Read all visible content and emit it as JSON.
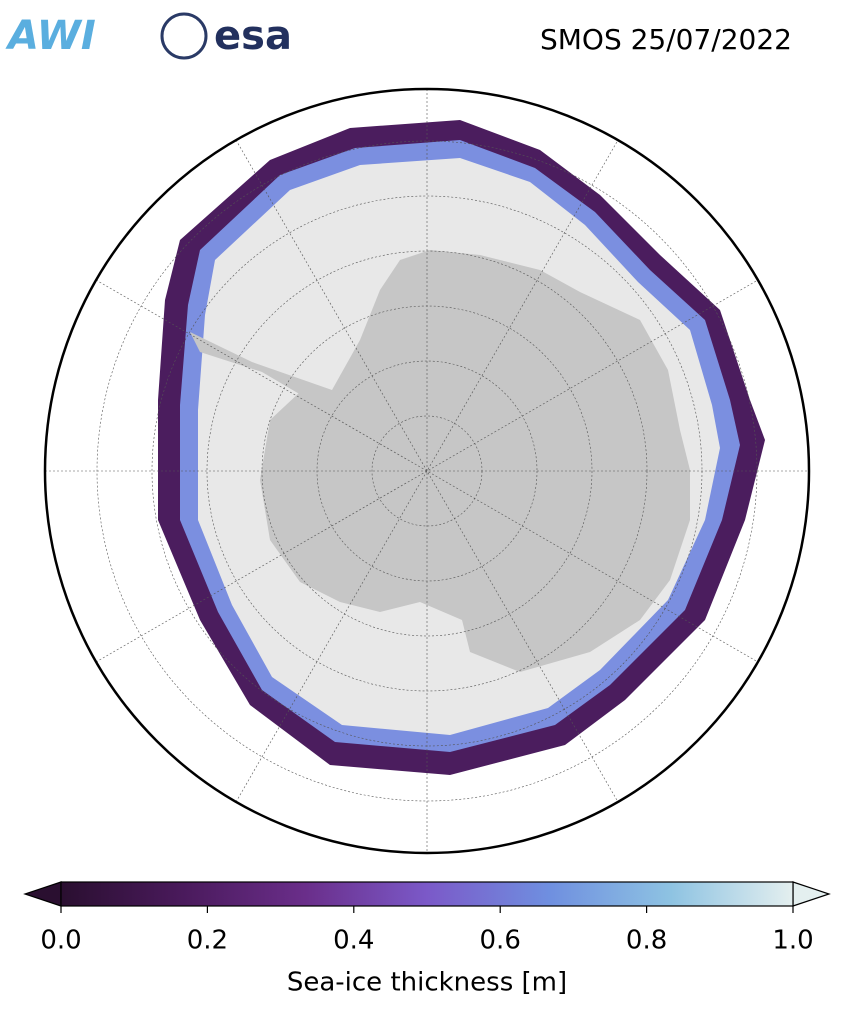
{
  "header": {
    "logos": [
      "AWI",
      "esa"
    ],
    "title": "SMOS 25/07/2022"
  },
  "chart_data": {
    "type": "colorbar",
    "label": "Sea-ice thickness [m]",
    "xlim": [
      0,
      1
    ],
    "xticks": [
      {
        "value": 0,
        "label": "0.0"
      },
      0.2,
      0.4,
      0.6,
      0.8,
      {
        "value": 1,
        "label": "1.0"
      }
    ],
    "colormap": [
      "#2a0f30",
      "#4a1a5c",
      "#6a2e8a",
      "#7b59c8",
      "#6f8fe0",
      "#8ec3e2",
      "#e4efef"
    ],
    "extend": "both"
  }
}
